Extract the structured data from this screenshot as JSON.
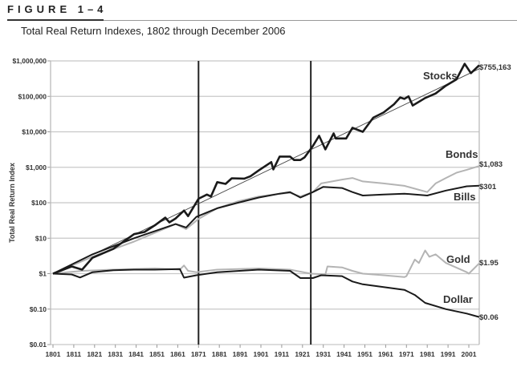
{
  "header": {
    "figure_label": "FIGURE 1–4",
    "subtitle": "Total Real Return Indexes, 1802 through December 2006"
  },
  "chart_data": {
    "type": "line",
    "title": "Total Real Return Indexes, 1802 through December 2006",
    "ylabel": "Total Real Return Index",
    "xlabel": "",
    "yscale": "log",
    "ylim": [
      0.01,
      1000000
    ],
    "xlim": [
      1801,
      2006
    ],
    "grid": "horizontal",
    "y_ticks": [
      {
        "value": 1000000,
        "label": "$1,000,000"
      },
      {
        "value": 100000,
        "label": "$100,000"
      },
      {
        "value": 10000,
        "label": "$10,000"
      },
      {
        "value": 1000,
        "label": "$1,000"
      },
      {
        "value": 100,
        "label": "$100"
      },
      {
        "value": 10,
        "label": "$10"
      },
      {
        "value": 1,
        "label": "$1"
      },
      {
        "value": 0.1,
        "label": "$0.10"
      },
      {
        "value": 0.01,
        "label": "$0.01"
      }
    ],
    "x_ticks": [
      "1801",
      "1811",
      "1821",
      "1831",
      "1841",
      "1851",
      "1861",
      "1871",
      "1881",
      "1891",
      "1901",
      "1911",
      "1921",
      "1931",
      "1941",
      "1951",
      "1961",
      "1971",
      "1981",
      "1991",
      "2001"
    ],
    "vertical_markers": [
      1871,
      1925
    ],
    "trend_line": {
      "x": [
        1801,
        2006
      ],
      "y": [
        1,
        600000
      ]
    },
    "series": [
      {
        "name": "Stocks",
        "end_label": "$755,163",
        "color": "#1a1a1a",
        "width": 2.6,
        "x": [
          1801,
          1810,
          1815,
          1820,
          1830,
          1840,
          1845,
          1850,
          1855,
          1857,
          1860,
          1864,
          1866,
          1871,
          1875,
          1877,
          1880,
          1884,
          1887,
          1893,
          1896,
          1900,
          1906,
          1907,
          1910,
          1915,
          1917,
          1920,
          1922,
          1926,
          1929,
          1932,
          1936,
          1937,
          1942,
          1945,
          1950,
          1955,
          1960,
          1965,
          1968,
          1970,
          1972,
          1974,
          1980,
          1985,
          1990,
          1995,
          1999,
          2002,
          2006
        ],
        "y": [
          1,
          1.6,
          1.3,
          2.8,
          5,
          13,
          15,
          23,
          38,
          28,
          36,
          60,
          42,
          130,
          170,
          150,
          380,
          340,
          490,
          480,
          560,
          820,
          1400,
          870,
          2000,
          2000,
          1600,
          1600,
          1900,
          4000,
          7700,
          3200,
          9000,
          6500,
          6500,
          13000,
          10000,
          25000,
          35000,
          60000,
          93000,
          85000,
          100000,
          55000,
          90000,
          120000,
          200000,
          300000,
          830000,
          450000,
          755163
        ]
      },
      {
        "name": "Bonds",
        "end_label": "$1,083",
        "color": "#b4b4b4",
        "width": 2,
        "x": [
          1801,
          1820,
          1840,
          1860,
          1865,
          1871,
          1880,
          1890,
          1900,
          1910,
          1915,
          1920,
          1926,
          1930,
          1940,
          1945,
          1950,
          1960,
          1970,
          1981,
          1985,
          1990,
          1995,
          2000,
          2006
        ],
        "y": [
          1,
          3,
          8,
          25,
          18,
          35,
          70,
          110,
          150,
          180,
          190,
          150,
          200,
          350,
          450,
          500,
          400,
          350,
          300,
          200,
          350,
          500,
          700,
          850,
          1083
        ]
      },
      {
        "name": "Bills",
        "end_label": "$301",
        "color": "#1a1a1a",
        "width": 2,
        "x": [
          1801,
          1820,
          1840,
          1860,
          1865,
          1870,
          1880,
          1890,
          1900,
          1910,
          1915,
          1920,
          1926,
          1931,
          1940,
          1945,
          1950,
          1960,
          1970,
          1981,
          1990,
          2000,
          2006
        ],
        "y": [
          1,
          3.5,
          10,
          25,
          20,
          40,
          70,
          100,
          140,
          180,
          200,
          140,
          200,
          280,
          260,
          200,
          160,
          170,
          180,
          160,
          220,
          290,
          301
        ]
      },
      {
        "name": "Gold",
        "end_label": "$1.95",
        "color": "#b4b4b4",
        "width": 2,
        "x": [
          1801,
          1815,
          1830,
          1850,
          1862,
          1864,
          1866,
          1870,
          1880,
          1900,
          1915,
          1925,
          1932,
          1933,
          1940,
          1945,
          1950,
          1960,
          1970,
          1971,
          1975,
          1977,
          1980,
          1982,
          1985,
          1990,
          2000,
          2001,
          2006
        ],
        "y": [
          1,
          1.2,
          1.3,
          1.4,
          1.3,
          1.7,
          1.2,
          1.1,
          1.3,
          1.4,
          1.3,
          1.0,
          0.95,
          1.6,
          1.5,
          1.2,
          1.0,
          0.9,
          0.8,
          0.85,
          2.5,
          2,
          4.5,
          3,
          3.5,
          2,
          1.1,
          1.0,
          1.95
        ]
      },
      {
        "name": "Dollar",
        "end_label": "$0.06",
        "color": "#1a1a1a",
        "width": 2,
        "x": [
          1801,
          1810,
          1814,
          1820,
          1830,
          1840,
          1850,
          1862,
          1864,
          1870,
          1880,
          1900,
          1915,
          1920,
          1926,
          1930,
          1940,
          1945,
          1950,
          1960,
          1970,
          1975,
          1980,
          1990,
          2000,
          2006
        ],
        "y": [
          1,
          0.95,
          0.78,
          1.1,
          1.25,
          1.3,
          1.3,
          1.35,
          0.77,
          0.9,
          1.1,
          1.3,
          1.2,
          0.75,
          0.75,
          0.9,
          0.85,
          0.6,
          0.5,
          0.42,
          0.35,
          0.25,
          0.15,
          0.1,
          0.075,
          0.06
        ]
      }
    ]
  }
}
